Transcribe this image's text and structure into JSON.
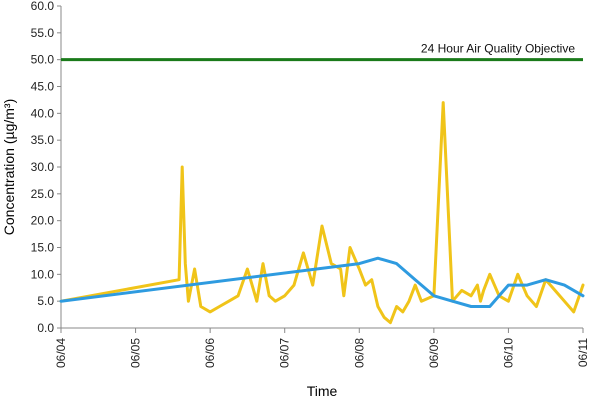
{
  "chart_data": {
    "type": "line",
    "xlabel": "Time",
    "ylabel": "Concentration (µg/m³)",
    "ylim": [
      0,
      60
    ],
    "yticks": [
      "0.0",
      "5.0",
      "10.0",
      "15.0",
      "20.0",
      "25.0",
      "30.0",
      "35.0",
      "40.0",
      "45.0",
      "50.0",
      "55.0",
      "60.0"
    ],
    "xlim": [
      "06/04",
      "06/11"
    ],
    "xticks": [
      "06/04",
      "06/05",
      "06/06",
      "06/07",
      "06/08",
      "06/09",
      "06/10",
      "06/11"
    ],
    "grid": false,
    "objective": {
      "label": "24 Hour Air Quality Objective",
      "value": 50,
      "color": "#1a7a1a"
    },
    "series": [
      {
        "color": "#f0c419",
        "x": [
          "06/04 00:00",
          "06/05 14:00",
          "06/05 15:00",
          "06/05 16:00",
          "06/05 17:00",
          "06/05 19:00",
          "06/05 21:00",
          "06/06 00:00",
          "06/06 03:00",
          "06/06 06:00",
          "06/06 09:00",
          "06/06 12:00",
          "06/06 15:00",
          "06/06 17:00",
          "06/06 19:00",
          "06/06 21:00",
          "06/07 00:00",
          "06/07 03:00",
          "06/07 06:00",
          "06/07 09:00",
          "06/07 12:00",
          "06/07 15:00",
          "06/07 18:00",
          "06/07 19:00",
          "06/07 21:00",
          "06/08 00:00",
          "06/08 02:00",
          "06/08 04:00",
          "06/08 06:00",
          "06/08 08:00",
          "06/08 10:00",
          "06/08 12:00",
          "06/08 14:00",
          "06/08 16:00",
          "06/08 18:00",
          "06/08 20:00",
          "06/09 00:00",
          "06/09 03:00",
          "06/09 06:00",
          "06/09 09:00",
          "06/09 12:00",
          "06/09 14:00",
          "06/09 15:00",
          "06/09 16:00",
          "06/09 18:00",
          "06/09 21:00",
          "06/10 00:00",
          "06/10 03:00",
          "06/10 06:00",
          "06/10 09:00",
          "06/10 12:00",
          "06/10 15:00",
          "06/10 18:00",
          "06/10 21:00",
          "06/11 00:00"
        ],
        "values": [
          5,
          9,
          30,
          12,
          5,
          11,
          4,
          3,
          4,
          5,
          6,
          11,
          5,
          12,
          6,
          5,
          6,
          8,
          14,
          8,
          19,
          12,
          11,
          6,
          15,
          11,
          8,
          9,
          4,
          2,
          1,
          4,
          3,
          5,
          8,
          5,
          6,
          42,
          5,
          7,
          6,
          8,
          5,
          7,
          10,
          6,
          5,
          10,
          6,
          4,
          9,
          7,
          5,
          3,
          8
        ]
      },
      {
        "color": "#2e9be0",
        "x": [
          "06/04 00:00",
          "06/08 00:00",
          "06/08 06:00",
          "06/08 12:00",
          "06/08 18:00",
          "06/09 00:00",
          "06/09 06:00",
          "06/09 12:00",
          "06/09 18:00",
          "06/10 00:00",
          "06/10 06:00",
          "06/10 12:00",
          "06/10 18:00",
          "06/11 00:00"
        ],
        "values": [
          5,
          12,
          13,
          12,
          9,
          6,
          5,
          4,
          4,
          8,
          8,
          9,
          8,
          6
        ]
      }
    ]
  }
}
